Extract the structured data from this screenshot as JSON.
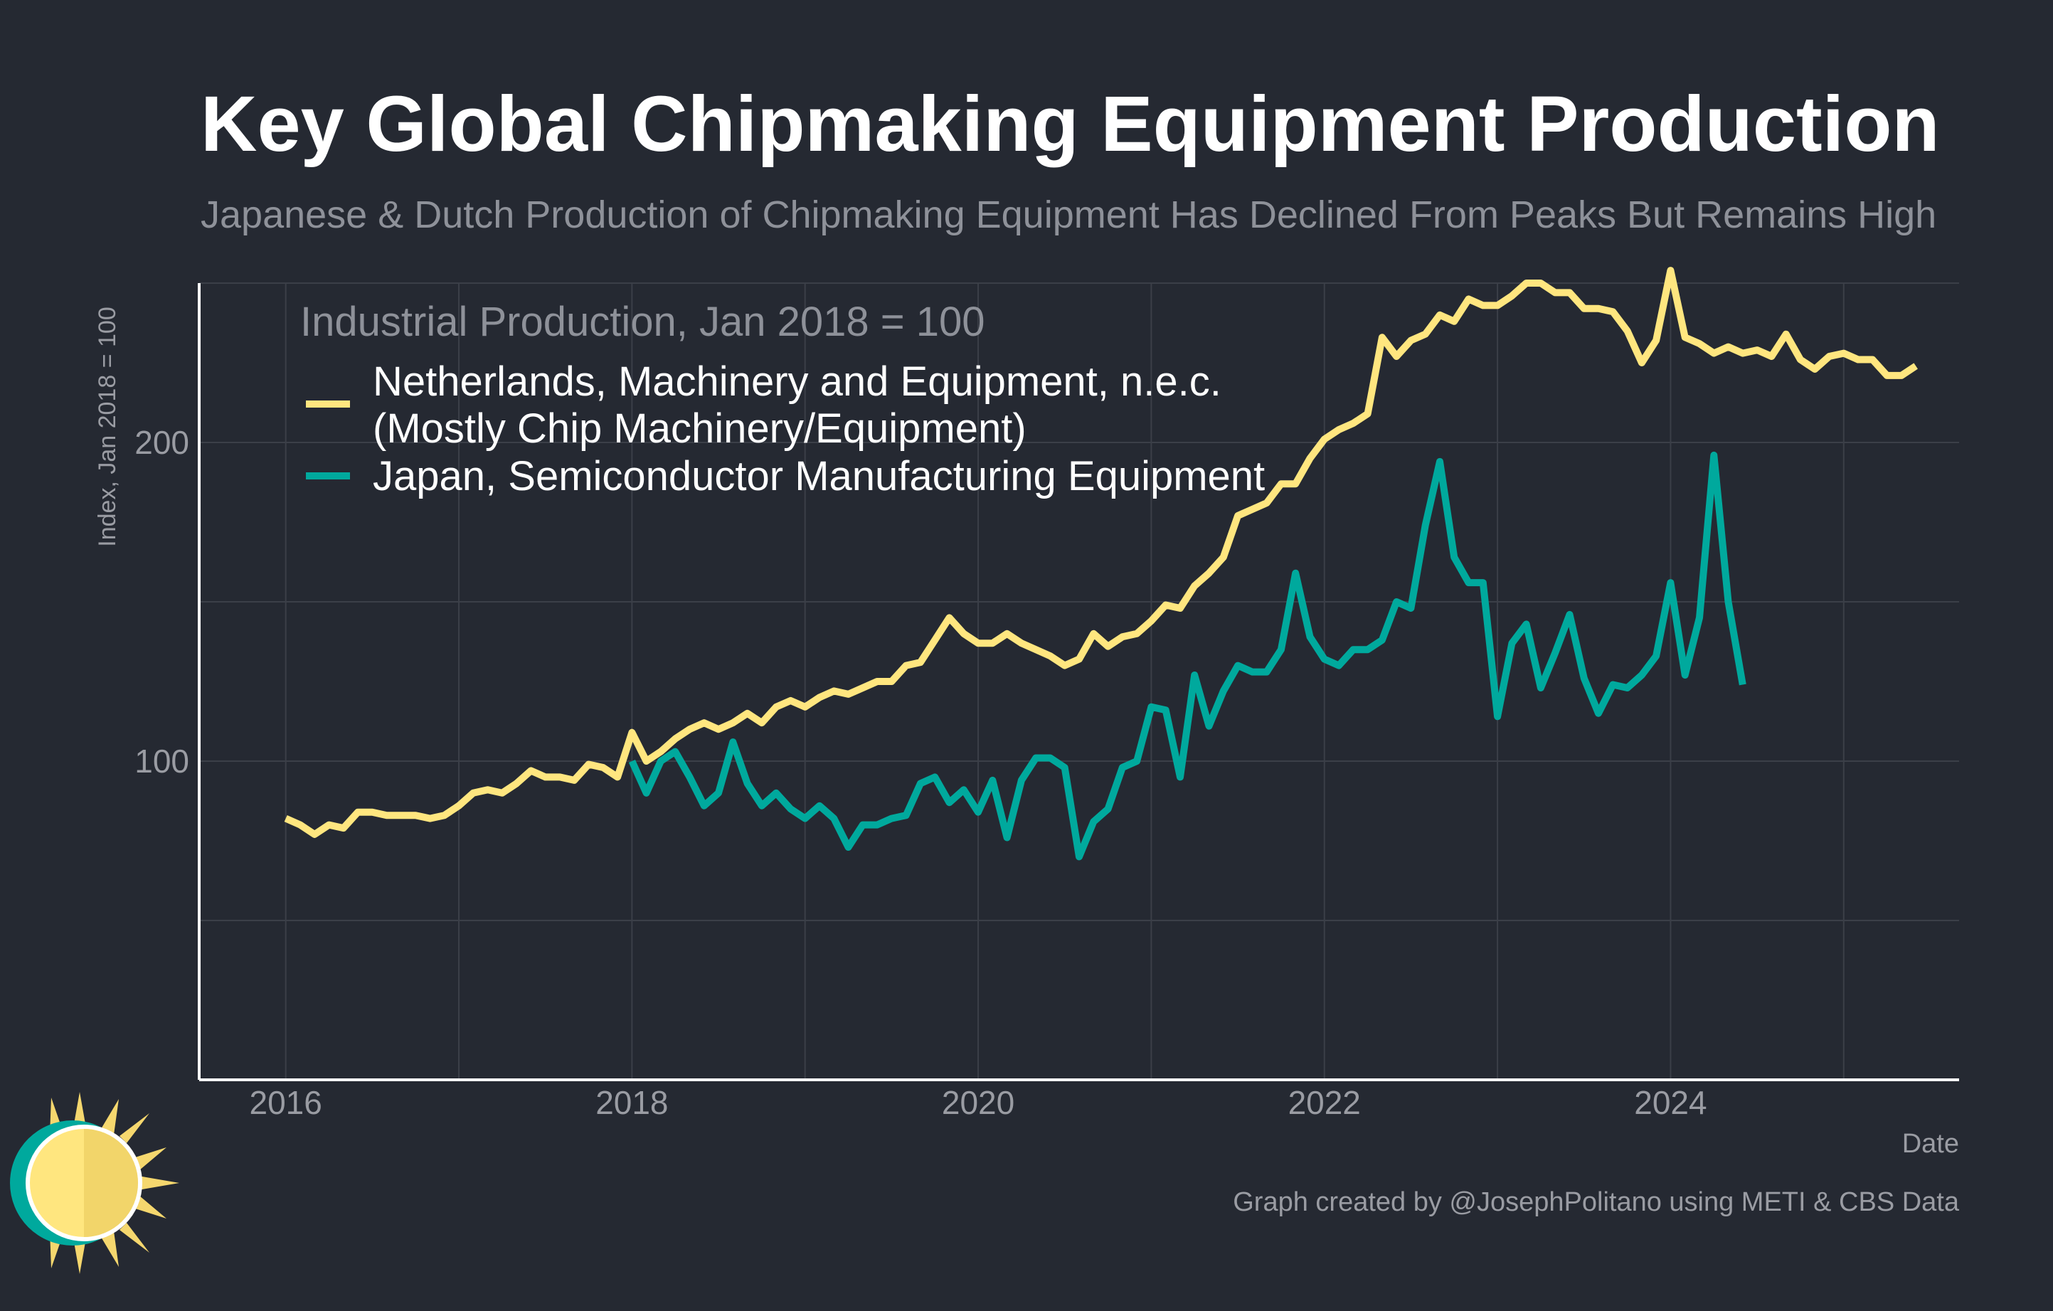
{
  "title": "Key Global Chipmaking Equipment Production",
  "subtitle": "Japanese & Dutch Production of Chipmaking Equipment Has Declined From Peaks But Remains High",
  "caption": "Graph created by @JosephPolitano using METI & CBS Data",
  "logo_icon": "sun-logo-icon",
  "colors": {
    "background": "#252932",
    "netherlands": "#FFE67F",
    "japan": "#00A99D",
    "grid": "#3b3f48",
    "axis": "#ffffff"
  },
  "chart_data": {
    "type": "line",
    "title": "Key Global Chipmaking Equipment Production",
    "xlabel": "Date",
    "ylabel": "Index, Jan 2018 = 100",
    "legend_title": "Industrial Production, Jan 2018 = 100",
    "legend_position": "top-left",
    "grid": true,
    "xlim": [
      "2015-07",
      "2025-09"
    ],
    "ylim": [
      0,
      250
    ],
    "x_ticks": [
      "2016",
      "2018",
      "2020",
      "2022",
      "2024"
    ],
    "y_ticks": [
      100,
      200
    ],
    "series": [
      {
        "name": "Netherlands, Machinery and Equipment, n.e.c. (Mostly Chip Machinery/Equipment)",
        "legend_lines": [
          "Netherlands, Machinery and Equipment, n.e.c.",
          "(Mostly Chip Machinery/Equipment)"
        ],
        "color": "#FFE67F",
        "start": "2016-01",
        "values": [
          82,
          80,
          77,
          80,
          79,
          84,
          84,
          83,
          83,
          83,
          82,
          83,
          86,
          90,
          91,
          90,
          93,
          97,
          95,
          95,
          94,
          99,
          98,
          95,
          109,
          100,
          103,
          107,
          110,
          112,
          110,
          112,
          115,
          112,
          117,
          119,
          117,
          120,
          122,
          121,
          123,
          125,
          125,
          130,
          131,
          138,
          145,
          140,
          137,
          137,
          140,
          137,
          135,
          133,
          130,
          132,
          140,
          136,
          139,
          140,
          144,
          149,
          148,
          155,
          159,
          164,
          177,
          179,
          181,
          187,
          187,
          195,
          201,
          204,
          206,
          209,
          233,
          227,
          232,
          234,
          240,
          238,
          245,
          243,
          243,
          246,
          250,
          250,
          247,
          247,
          242,
          242,
          241,
          235,
          225,
          232,
          254,
          233,
          231,
          228,
          230,
          228,
          229,
          227,
          234,
          226,
          223,
          227,
          228,
          226,
          226,
          221,
          221,
          224
        ]
      },
      {
        "name": "Japan, Semiconductor Manufacturing Equipment",
        "legend_lines": [
          "Japan, Semiconductor Manufacturing Equipment"
        ],
        "color": "#00A99D",
        "start": "2018-01",
        "values": [
          100,
          90,
          100,
          103,
          95,
          86,
          90,
          106,
          93,
          86,
          90,
          85,
          82,
          86,
          82,
          73,
          80,
          80,
          82,
          83,
          93,
          95,
          87,
          91,
          84,
          94,
          76,
          94,
          101,
          101,
          98,
          70,
          81,
          85,
          98,
          100,
          117,
          116,
          95,
          127,
          111,
          122,
          130,
          128,
          128,
          135,
          159,
          139,
          132,
          130,
          135,
          135,
          138,
          150,
          148,
          174,
          194,
          164,
          156,
          156,
          114,
          137,
          143,
          123,
          134,
          146,
          126,
          115,
          124,
          123,
          127,
          133,
          156,
          127,
          145,
          196,
          150,
          124
        ]
      }
    ]
  }
}
